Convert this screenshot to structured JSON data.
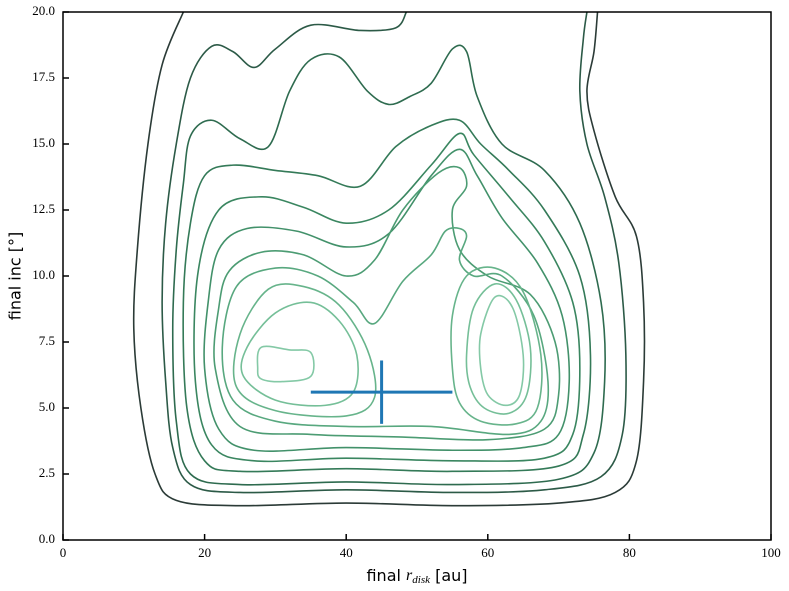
{
  "chart_data": {
    "type": "contour",
    "xlabel": {
      "text": "final",
      "var": "r",
      "sub": "disk",
      "unit": "[au]"
    },
    "ylabel": "final inc [°]",
    "xlim": [
      0,
      100
    ],
    "ylim": [
      0,
      20
    ],
    "xticks": [
      0,
      20,
      40,
      60,
      80,
      100
    ],
    "yticks": [
      {
        "value": 0,
        "label": "0.0"
      },
      {
        "value": 2.5,
        "label": "2.5"
      },
      {
        "value": 5,
        "label": "5.0"
      },
      {
        "value": 7.5,
        "label": "7.5"
      },
      {
        "value": 10,
        "label": "10.0"
      },
      {
        "value": 12.5,
        "label": "12.5"
      },
      {
        "value": 15,
        "label": "15.0"
      },
      {
        "value": 17.5,
        "label": "17.5"
      },
      {
        "value": 20,
        "label": "20.0"
      }
    ],
    "contours": [
      {
        "color": "#2b3b37",
        "closed": false,
        "x": [
          17,
          14,
          12,
          10.5,
          10,
          11,
          13,
          16,
          25,
          40,
          55,
          70,
          78,
          81,
          82,
          82,
          81,
          78,
          75,
          74,
          75,
          75.5
        ],
        "y": [
          20,
          18,
          15,
          11,
          8,
          5,
          2.5,
          1.5,
          1.3,
          1.4,
          1.3,
          1.4,
          1.8,
          3,
          6,
          9,
          11.5,
          13,
          15.5,
          17,
          18.5,
          20
        ]
      },
      {
        "color": "#2c5a47",
        "closed": false,
        "x": [
          48.5,
          47,
          42,
          35,
          30,
          27,
          24,
          21,
          18,
          16,
          14.5,
          14,
          14.5,
          15.5,
          18,
          25,
          40,
          55,
          68,
          76,
          79,
          79.5,
          78.5,
          76.5,
          74,
          73,
          73.5,
          74
        ],
        "y": [
          20,
          19.4,
          19.3,
          19.5,
          18.6,
          17.9,
          18.5,
          18.7,
          17.5,
          15,
          12,
          9,
          6,
          3.5,
          2.1,
          1.8,
          1.9,
          1.8,
          1.9,
          2.4,
          4,
          7,
          10.5,
          13,
          15,
          17,
          19,
          20
        ]
      },
      {
        "color": "#2e6b4f",
        "closed": true,
        "x": [
          17,
          18,
          21,
          25,
          29,
          32,
          35,
          39,
          43,
          46,
          49,
          52,
          55,
          57,
          58.5,
          62,
          68,
          73,
          76,
          76.5,
          75,
          70,
          55,
          40,
          25,
          18,
          16,
          15.5,
          16
        ],
        "y": [
          13.5,
          15.3,
          15.9,
          15.2,
          14.9,
          17,
          18.2,
          18.3,
          17,
          16.5,
          16.8,
          17.3,
          18.6,
          18.5,
          16.8,
          15,
          14,
          12,
          9,
          6,
          3.3,
          2.3,
          2.1,
          2.2,
          2.1,
          2.5,
          4.5,
          8,
          11
        ]
      },
      {
        "color": "#347a58",
        "closed": true,
        "x": [
          20,
          24,
          30,
          36,
          42,
          47,
          52,
          56,
          59,
          63,
          68,
          73,
          74.5,
          73.5,
          70,
          55,
          40,
          25,
          20,
          17.5,
          17,
          18
        ],
        "y": [
          13.8,
          14.2,
          14,
          13.8,
          13.4,
          14.9,
          15.7,
          15.9,
          15,
          14,
          12.5,
          10,
          7,
          4,
          2.8,
          2.6,
          2.7,
          2.6,
          3,
          5,
          9,
          12
        ]
      },
      {
        "color": "#3a8660",
        "closed": true,
        "x": [
          22,
          28,
          34,
          40,
          46,
          52,
          56,
          58,
          63,
          68,
          72,
          73,
          72,
          68,
          55,
          40,
          27,
          21,
          18.7,
          19
        ],
        "y": [
          12.5,
          13,
          12.6,
          12,
          12.5,
          14.2,
          15.4,
          14.6,
          13,
          11.3,
          9,
          6.5,
          4,
          3.1,
          3,
          3.1,
          3,
          3.6,
          6,
          10
        ]
      },
      {
        "color": "#42916a",
        "closed": true,
        "x": [
          22,
          26,
          33,
          40,
          46,
          52,
          56,
          58.5,
          62,
          67,
          70.5,
          71.5,
          70,
          65,
          55,
          40,
          27,
          22,
          20,
          20.5
        ],
        "y": [
          11,
          11.8,
          11.7,
          11.1,
          11.6,
          13.8,
          14.8,
          13.8,
          12.2,
          10.5,
          8.5,
          6,
          4,
          3.5,
          3.4,
          3.5,
          3.4,
          4.2,
          6.5,
          9
        ]
      },
      {
        "color": "#4c9c73",
        "closed": true,
        "x": [
          23.5,
          28,
          34,
          40,
          44,
          48,
          53,
          56,
          57,
          55,
          56,
          60,
          66,
          69.5,
          70,
          68,
          60,
          48,
          35,
          25,
          21.5,
          22
        ],
        "y": [
          10.2,
          10.9,
          10.8,
          10,
          10.6,
          12.5,
          13.9,
          14.1,
          13.4,
          12.5,
          11,
          10,
          9.3,
          7.5,
          5.5,
          4.2,
          3.8,
          3.9,
          4,
          4.3,
          6.5,
          8.8
        ]
      },
      {
        "color": "#58a87f",
        "closed": true,
        "x": [
          24.5,
          30,
          36,
          41,
          44,
          48,
          52,
          54,
          56,
          57,
          56,
          58,
          62,
          66.5,
          68.5,
          67.5,
          63,
          52,
          40,
          30,
          24,
          22.5
        ],
        "y": [
          9.6,
          10.3,
          10,
          9,
          8.2,
          9.8,
          10.8,
          11.7,
          11.8,
          11.5,
          10.6,
          10,
          10,
          8.5,
          6,
          4.5,
          4,
          4.3,
          4.3,
          4.5,
          5.3,
          7.3
        ]
      },
      {
        "color": "#67b48b",
        "closed": true,
        "x": [
          25,
          29,
          34,
          39,
          43,
          44,
          40,
          30,
          24.5
        ],
        "y": [
          7.8,
          9.5,
          9.6,
          8.9,
          7.2,
          5.4,
          4.7,
          4.9,
          5.8
        ]
      },
      {
        "color": "#67b48b",
        "closed": true,
        "x": [
          55,
          55,
          57,
          61,
          65,
          67.5,
          67,
          64,
          59,
          56
        ],
        "y": [
          6.5,
          8.5,
          10,
          10.3,
          9.4,
          7,
          5,
          4.4,
          4.5,
          5.2
        ]
      },
      {
        "color": "#75bf98",
        "closed": true,
        "x": [
          26,
          30,
          35,
          39,
          41.5,
          41,
          37,
          30,
          25.5
        ],
        "y": [
          7.3,
          8.6,
          9,
          8.3,
          7,
          5.6,
          5.1,
          5.3,
          6.2
        ]
      },
      {
        "color": "#75bf98",
        "closed": true,
        "x": [
          57,
          58,
          61,
          64,
          66,
          65.5,
          63,
          59.5,
          57.5
        ],
        "y": [
          7,
          8.8,
          9.7,
          9.1,
          7.3,
          5.5,
          4.8,
          5,
          5.8
        ]
      },
      {
        "color": "#84c9a6",
        "closed": true,
        "x": [
          27.5,
          28,
          32,
          35,
          35,
          31,
          28
        ],
        "y": [
          6.5,
          7.3,
          7.2,
          7.1,
          6.2,
          6,
          6.1
        ]
      },
      {
        "color": "#84c9a6",
        "closed": true,
        "x": [
          59,
          61,
          63.5,
          65,
          64.5,
          62.5,
          60,
          59
        ],
        "y": [
          7.8,
          9.2,
          8.8,
          7,
          5.5,
          5.1,
          5.5,
          6.5
        ]
      }
    ],
    "errorbar": {
      "x": 45,
      "y": 5.6,
      "xerr": 10,
      "yerr": 1.2,
      "color": "#1f77b4"
    }
  }
}
